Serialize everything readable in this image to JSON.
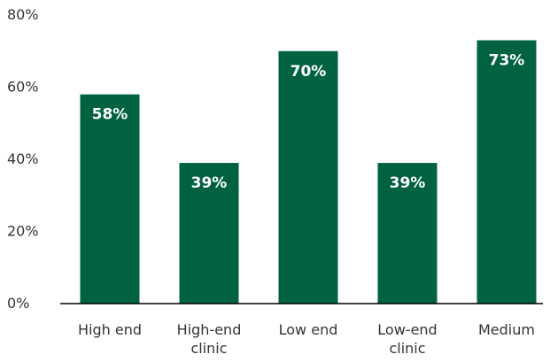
{
  "chart_data": {
    "type": "bar",
    "categories": [
      [
        "High end"
      ],
      [
        "High-end",
        "clinic"
      ],
      [
        "Low end"
      ],
      [
        "Low-end",
        "clinic"
      ],
      [
        "Medium"
      ]
    ],
    "values": [
      58,
      39,
      70,
      39,
      73
    ],
    "value_labels": [
      "58%",
      "39%",
      "70%",
      "39%",
      "73%"
    ],
    "y_ticks": [
      {
        "value": 0,
        "label": "0%"
      },
      {
        "value": 20,
        "label": "20%"
      },
      {
        "value": 40,
        "label": "40%"
      },
      {
        "value": 60,
        "label": "60%"
      },
      {
        "value": 80,
        "label": "80%"
      }
    ],
    "ylim": [
      0,
      80
    ],
    "grid": false,
    "colors": {
      "bar": "#006241",
      "axis": "#000000",
      "text": "#333333",
      "value_label": "#ffffff"
    }
  }
}
